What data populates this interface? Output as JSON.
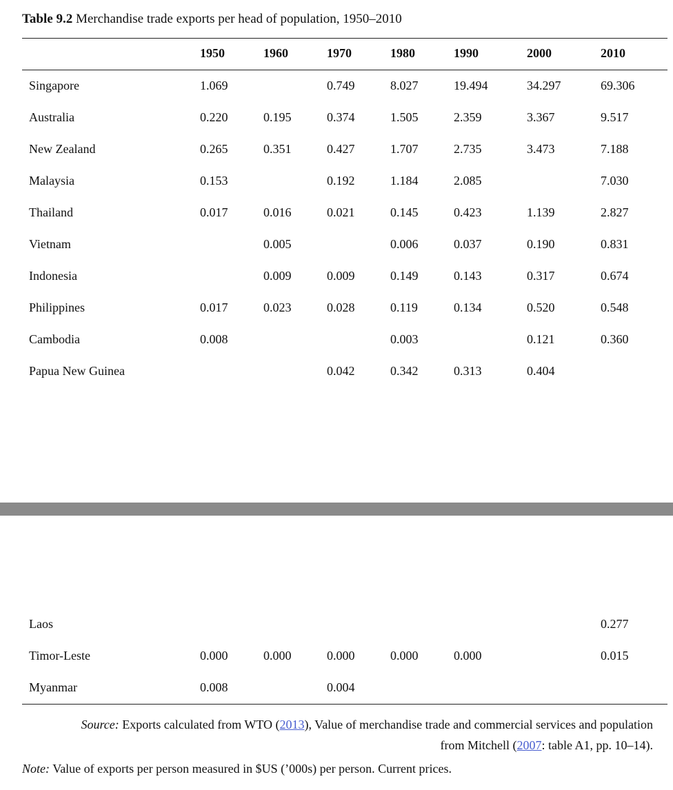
{
  "caption": {
    "label": "Table 9.2",
    "title": "Merchandise trade exports per head of population, 1950–2010"
  },
  "columns": [
    "1950",
    "1960",
    "1970",
    "1980",
    "1990",
    "2000",
    "2010"
  ],
  "rows": [
    {
      "name": "Singapore",
      "values": [
        "1.069",
        "",
        "0.749",
        "8.027",
        "19.494",
        "34.297",
        "69.306"
      ]
    },
    {
      "name": "Australia",
      "values": [
        "0.220",
        "0.195",
        "0.374",
        "1.505",
        "2.359",
        "3.367",
        "9.517"
      ]
    },
    {
      "name": "New Zealand",
      "values": [
        "0.265",
        "0.351",
        "0.427",
        "1.707",
        "2.735",
        "3.473",
        "7.188"
      ]
    },
    {
      "name": "Malaysia",
      "values": [
        "0.153",
        "",
        "0.192",
        "1.184",
        "2.085",
        "",
        "7.030"
      ]
    },
    {
      "name": "Thailand",
      "values": [
        "0.017",
        "0.016",
        "0.021",
        "0.145",
        "0.423",
        "1.139",
        "2.827"
      ]
    },
    {
      "name": "Vietnam",
      "values": [
        "",
        "0.005",
        "",
        "0.006",
        "0.037",
        "0.190",
        "0.831"
      ]
    },
    {
      "name": "Indonesia",
      "values": [
        "",
        "0.009",
        "0.009",
        "0.149",
        "0.143",
        "0.317",
        "0.674"
      ]
    },
    {
      "name": "Philippines",
      "values": [
        "0.017",
        "0.023",
        "0.028",
        "0.119",
        "0.134",
        "0.520",
        "0.548"
      ]
    },
    {
      "name": "Cambodia",
      "values": [
        "0.008",
        "",
        "",
        "0.003",
        "",
        "0.121",
        "0.360"
      ]
    },
    {
      "name": "Papua New Guinea",
      "values": [
        "",
        "",
        "0.042",
        "0.342",
        "0.313",
        "0.404",
        ""
      ]
    }
  ],
  "rows_after_break": [
    {
      "name": "Laos",
      "values": [
        "",
        "",
        "",
        "",
        "",
        "",
        "0.277"
      ]
    },
    {
      "name": "Timor-Leste",
      "values": [
        "0.000",
        "0.000",
        "0.000",
        "0.000",
        "0.000",
        "",
        "0.015"
      ]
    },
    {
      "name": "Myanmar",
      "values": [
        "0.008",
        "",
        "0.004",
        "",
        "",
        "",
        ""
      ]
    }
  ],
  "source": {
    "label": "Source:",
    "text_1": "Exports calculated from WTO (",
    "link_1": "2013",
    "text_2": "), Value of merchandise trade and commercial services and population from Mitchell (",
    "link_2": "2007",
    "text_3": ": table A1, pp. 10–14)."
  },
  "note": {
    "label": "Note:",
    "text": "Value of exports per person measured in $US (’000s) per person. Current prices."
  }
}
